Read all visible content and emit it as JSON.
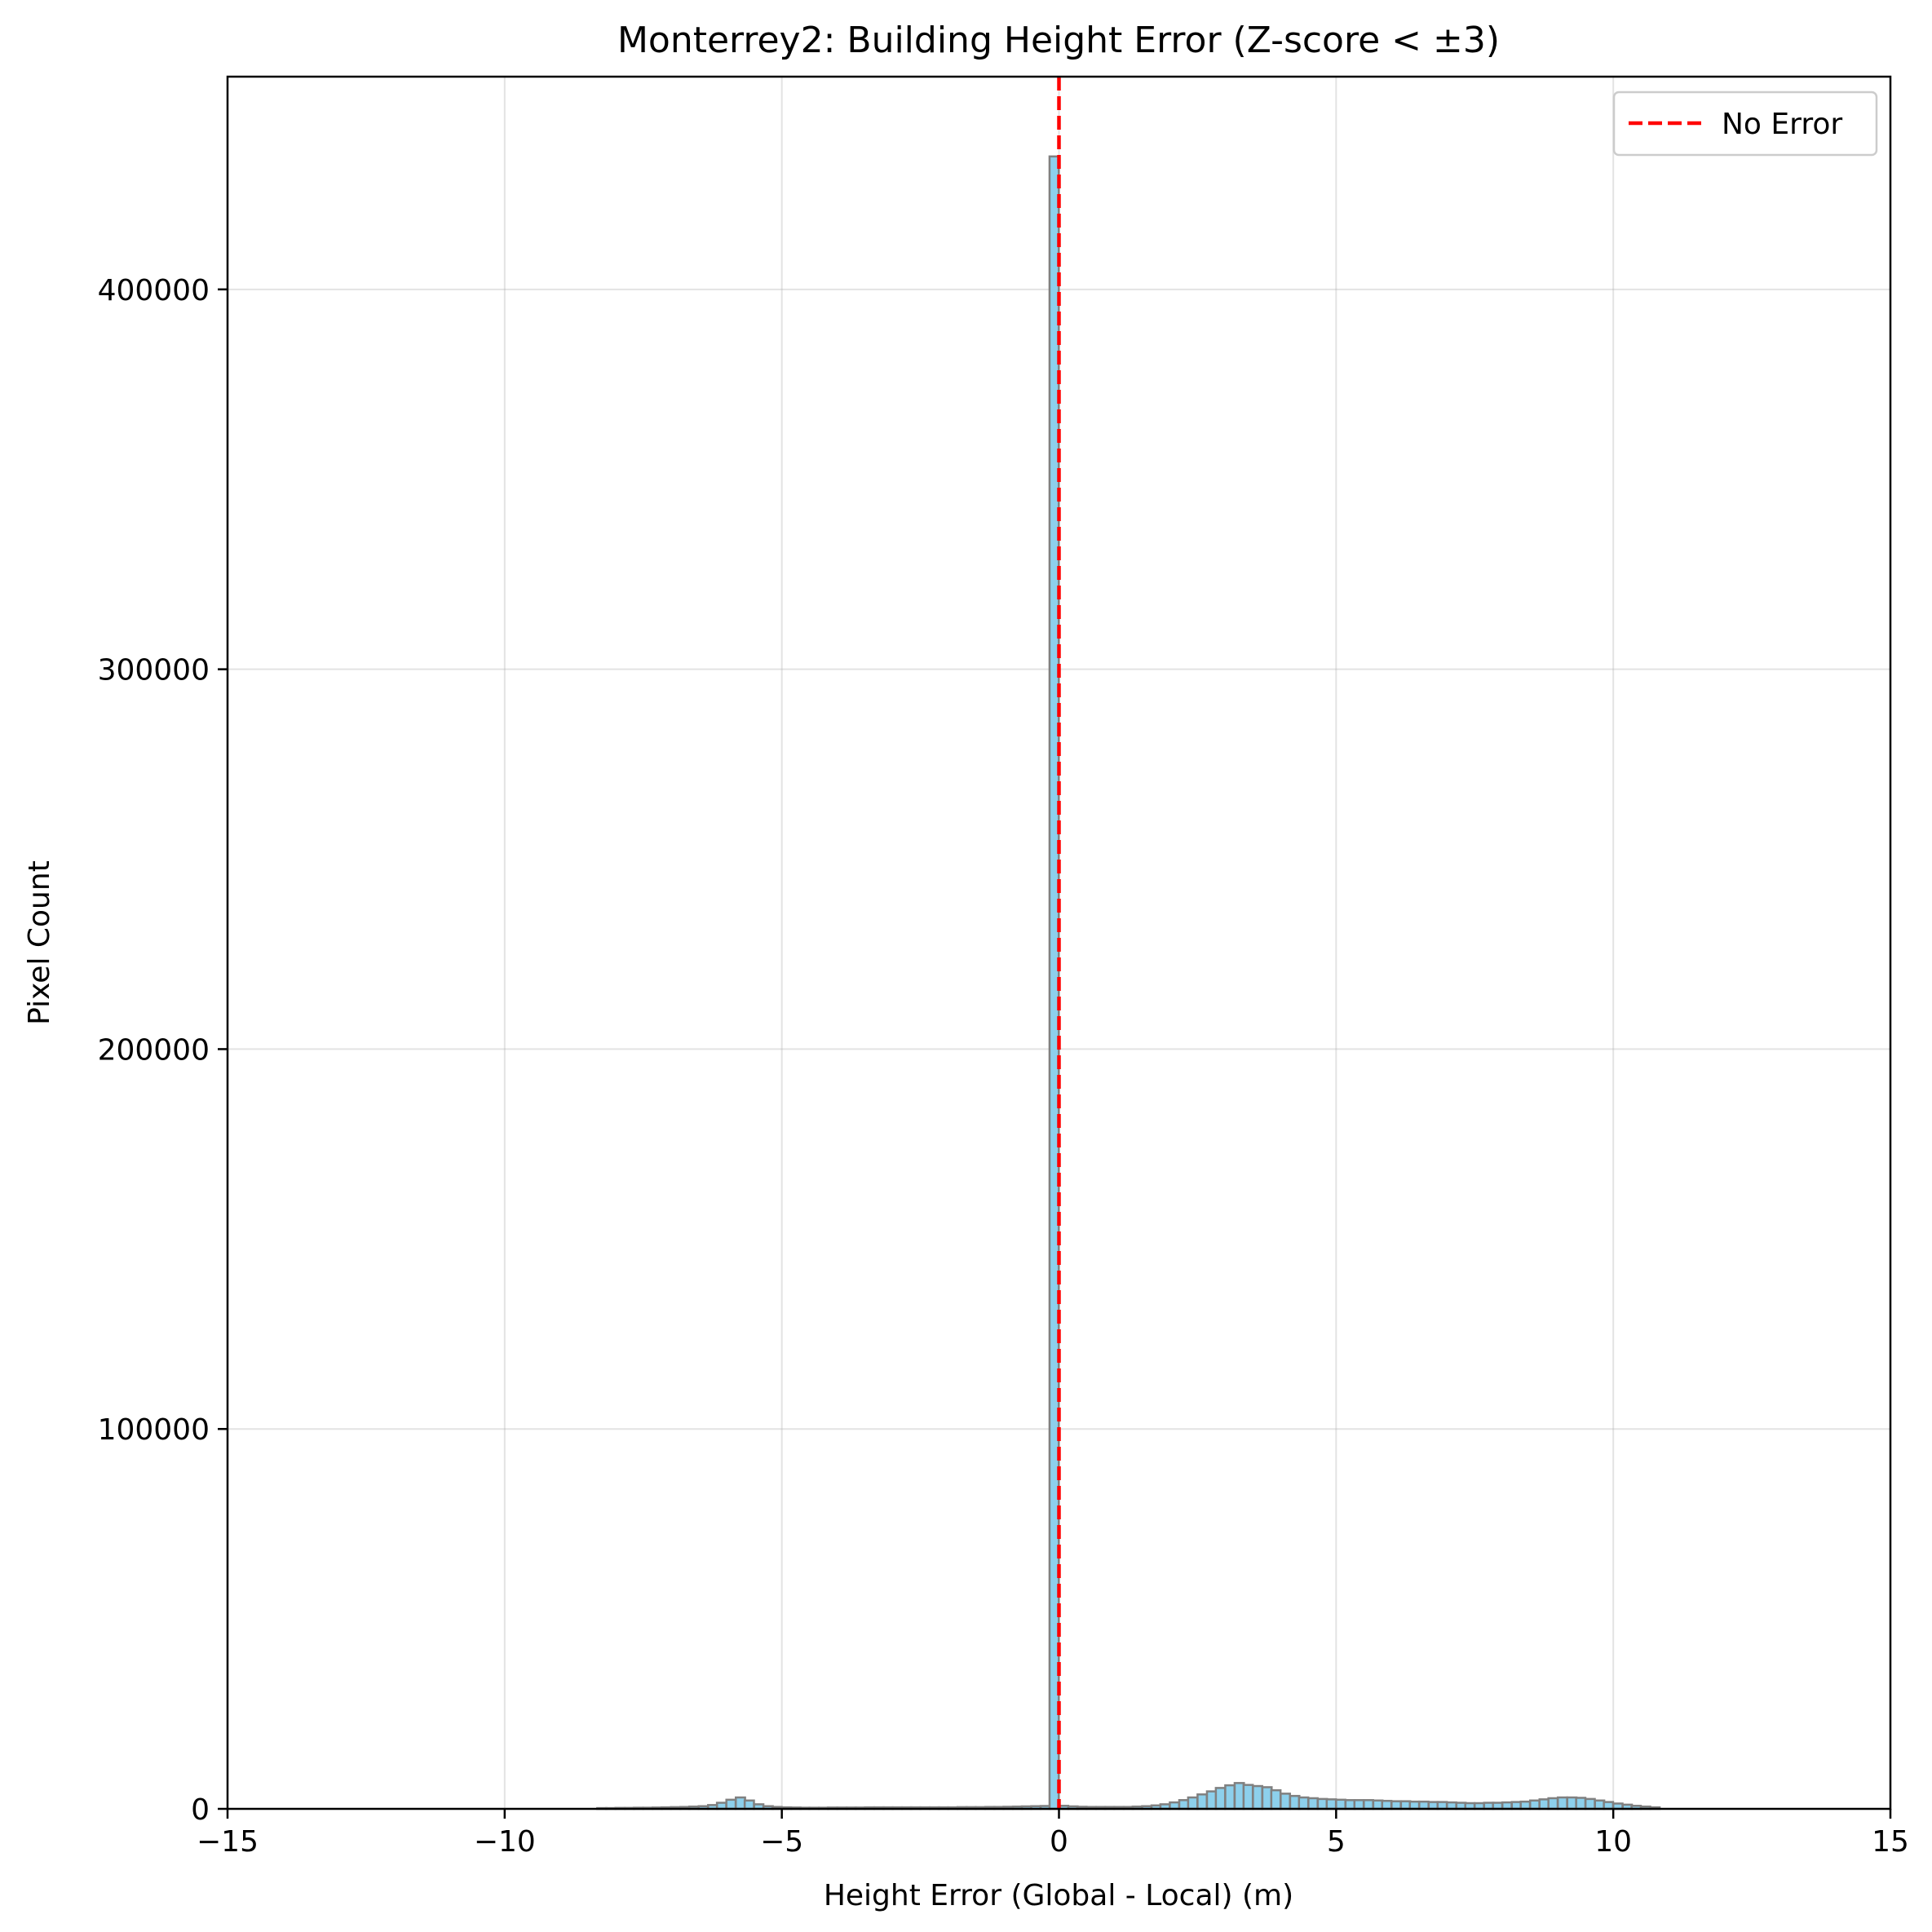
{
  "chart_data": {
    "type": "histogram",
    "title": "Monterrey2: Building Height Error (Z-score < ±3)",
    "xlabel": "Height Error (Global - Local) (m)",
    "ylabel": "Pixel Count",
    "xlim": [
      -15,
      15
    ],
    "ylim": [
      0,
      456000
    ],
    "xticks": [
      -15,
      -10,
      -5,
      0,
      5,
      10,
      15
    ],
    "xtick_labels": [
      "−15",
      "−10",
      "−5",
      "0",
      "5",
      "10",
      "15"
    ],
    "yticks": [
      0,
      100000,
      200000,
      300000,
      400000
    ],
    "ytick_labels": [
      "0",
      "100000",
      "200000",
      "300000",
      "400000"
    ],
    "grid": true,
    "bin_width": 0.167,
    "series": [
      {
        "name": "",
        "color": "#87CEEB",
        "edgecolor": "#808080",
        "bins": [
          {
            "x0": -8.33,
            "value": 200
          },
          {
            "x0": -8.17,
            "value": 200
          },
          {
            "x0": -8.0,
            "value": 250
          },
          {
            "x0": -7.83,
            "value": 250
          },
          {
            "x0": -7.67,
            "value": 300
          },
          {
            "x0": -7.5,
            "value": 300
          },
          {
            "x0": -7.33,
            "value": 350
          },
          {
            "x0": -7.17,
            "value": 400
          },
          {
            "x0": -7.0,
            "value": 450
          },
          {
            "x0": -6.83,
            "value": 500
          },
          {
            "x0": -6.67,
            "value": 600
          },
          {
            "x0": -6.5,
            "value": 700
          },
          {
            "x0": -6.33,
            "value": 1000
          },
          {
            "x0": -6.17,
            "value": 1600
          },
          {
            "x0": -6.0,
            "value": 2400
          },
          {
            "x0": -5.83,
            "value": 3000
          },
          {
            "x0": -5.67,
            "value": 2200
          },
          {
            "x0": -5.5,
            "value": 1200
          },
          {
            "x0": -5.33,
            "value": 700
          },
          {
            "x0": -5.17,
            "value": 500
          },
          {
            "x0": -5.0,
            "value": 400
          },
          {
            "x0": -4.83,
            "value": 350
          },
          {
            "x0": -4.67,
            "value": 300
          },
          {
            "x0": -4.5,
            "value": 300
          },
          {
            "x0": -4.33,
            "value": 300
          },
          {
            "x0": -4.17,
            "value": 350
          },
          {
            "x0": -4.0,
            "value": 350
          },
          {
            "x0": -3.83,
            "value": 350
          },
          {
            "x0": -3.67,
            "value": 350
          },
          {
            "x0": -3.5,
            "value": 400
          },
          {
            "x0": -3.33,
            "value": 400
          },
          {
            "x0": -3.17,
            "value": 400
          },
          {
            "x0": -3.0,
            "value": 400
          },
          {
            "x0": -2.83,
            "value": 400
          },
          {
            "x0": -2.67,
            "value": 400
          },
          {
            "x0": -2.5,
            "value": 400
          },
          {
            "x0": -2.33,
            "value": 400
          },
          {
            "x0": -2.17,
            "value": 400
          },
          {
            "x0": -2.0,
            "value": 400
          },
          {
            "x0": -1.83,
            "value": 450
          },
          {
            "x0": -1.67,
            "value": 450
          },
          {
            "x0": -1.5,
            "value": 450
          },
          {
            "x0": -1.33,
            "value": 500
          },
          {
            "x0": -1.17,
            "value": 500
          },
          {
            "x0": -1.0,
            "value": 550
          },
          {
            "x0": -0.83,
            "value": 600
          },
          {
            "x0": -0.67,
            "value": 650
          },
          {
            "x0": -0.5,
            "value": 700
          },
          {
            "x0": -0.33,
            "value": 750
          },
          {
            "x0": -0.17,
            "value": 435000
          },
          {
            "x0": 0.0,
            "value": 800
          },
          {
            "x0": 0.17,
            "value": 650
          },
          {
            "x0": 0.33,
            "value": 550
          },
          {
            "x0": 0.5,
            "value": 500
          },
          {
            "x0": 0.67,
            "value": 500
          },
          {
            "x0": 0.83,
            "value": 500
          },
          {
            "x0": 1.0,
            "value": 500
          },
          {
            "x0": 1.17,
            "value": 500
          },
          {
            "x0": 1.33,
            "value": 600
          },
          {
            "x0": 1.5,
            "value": 700
          },
          {
            "x0": 1.67,
            "value": 900
          },
          {
            "x0": 1.83,
            "value": 1200
          },
          {
            "x0": 2.0,
            "value": 1700
          },
          {
            "x0": 2.17,
            "value": 2300
          },
          {
            "x0": 2.33,
            "value": 3000
          },
          {
            "x0": 2.5,
            "value": 3800
          },
          {
            "x0": 2.67,
            "value": 4600
          },
          {
            "x0": 2.83,
            "value": 5500
          },
          {
            "x0": 3.0,
            "value": 6200
          },
          {
            "x0": 3.17,
            "value": 6800
          },
          {
            "x0": 3.33,
            "value": 6300
          },
          {
            "x0": 3.5,
            "value": 6000
          },
          {
            "x0": 3.67,
            "value": 5700
          },
          {
            "x0": 3.83,
            "value": 4900
          },
          {
            "x0": 4.0,
            "value": 4000
          },
          {
            "x0": 4.17,
            "value": 3400
          },
          {
            "x0": 4.33,
            "value": 3000
          },
          {
            "x0": 4.5,
            "value": 2800
          },
          {
            "x0": 4.67,
            "value": 2600
          },
          {
            "x0": 4.83,
            "value": 2500
          },
          {
            "x0": 5.0,
            "value": 2400
          },
          {
            "x0": 5.17,
            "value": 2300
          },
          {
            "x0": 5.33,
            "value": 2300
          },
          {
            "x0": 5.5,
            "value": 2300
          },
          {
            "x0": 5.67,
            "value": 2200
          },
          {
            "x0": 5.83,
            "value": 2100
          },
          {
            "x0": 6.0,
            "value": 2000
          },
          {
            "x0": 6.17,
            "value": 2000
          },
          {
            "x0": 6.33,
            "value": 1900
          },
          {
            "x0": 6.5,
            "value": 1900
          },
          {
            "x0": 6.67,
            "value": 1800
          },
          {
            "x0": 6.83,
            "value": 1800
          },
          {
            "x0": 7.0,
            "value": 1700
          },
          {
            "x0": 7.17,
            "value": 1600
          },
          {
            "x0": 7.33,
            "value": 1500
          },
          {
            "x0": 7.5,
            "value": 1500
          },
          {
            "x0": 7.67,
            "value": 1600
          },
          {
            "x0": 7.83,
            "value": 1600
          },
          {
            "x0": 8.0,
            "value": 1700
          },
          {
            "x0": 8.17,
            "value": 1800
          },
          {
            "x0": 8.33,
            "value": 1900
          },
          {
            "x0": 8.5,
            "value": 2200
          },
          {
            "x0": 8.67,
            "value": 2500
          },
          {
            "x0": 8.83,
            "value": 2800
          },
          {
            "x0": 9.0,
            "value": 3000
          },
          {
            "x0": 9.17,
            "value": 3000
          },
          {
            "x0": 9.33,
            "value": 2900
          },
          {
            "x0": 9.5,
            "value": 2600
          },
          {
            "x0": 9.67,
            "value": 2200
          },
          {
            "x0": 9.83,
            "value": 1800
          },
          {
            "x0": 10.0,
            "value": 1400
          },
          {
            "x0": 10.17,
            "value": 1100
          },
          {
            "x0": 10.33,
            "value": 800
          },
          {
            "x0": 10.5,
            "value": 600
          },
          {
            "x0": 10.67,
            "value": 400
          }
        ]
      }
    ],
    "reference_lines": [
      {
        "name": "No Error",
        "x": 0,
        "color": "#ff0000",
        "style": "dashed"
      }
    ],
    "legend": {
      "position": "top-right",
      "entries": [
        "No Error"
      ]
    }
  }
}
